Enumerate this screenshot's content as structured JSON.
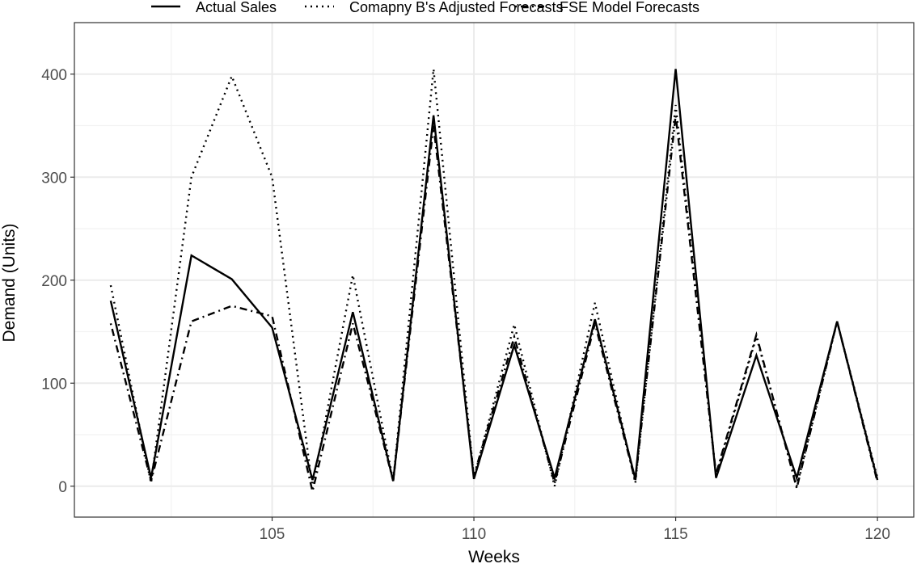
{
  "chart_data": {
    "type": "line",
    "title": "",
    "xlabel": "Weeks",
    "ylabel": "Demand (Units)",
    "xlim": [
      100.1,
      120.9
    ],
    "ylim": [
      -30,
      450
    ],
    "xticks": [
      105,
      110,
      115,
      120
    ],
    "yticks": [
      0,
      100,
      200,
      300,
      400
    ],
    "grid": true,
    "legend_position": "top",
    "x": [
      101,
      102,
      103,
      104,
      105,
      106,
      107,
      108,
      109,
      110,
      111,
      112,
      113,
      114,
      115,
      116,
      117,
      118,
      119,
      120
    ],
    "series": [
      {
        "name": "Actual Sales",
        "dash": "solid",
        "values": [
          180,
          8,
          224,
          201,
          154,
          6,
          169,
          5,
          360,
          7,
          137,
          8,
          162,
          7,
          405,
          8,
          127,
          8,
          160,
          6
        ]
      },
      {
        "name": "Comapny B's Adjusted Forecasts",
        "dash": "dotted",
        "values": [
          195,
          3,
          300,
          398,
          300,
          -2,
          205,
          5,
          405,
          8,
          157,
          0,
          178,
          3,
          370,
          10,
          145,
          0,
          160,
          8
        ]
      },
      {
        "name": "FSE Model Forecasts",
        "dash": "dashdot",
        "values": [
          158,
          5,
          160,
          175,
          165,
          -5,
          158,
          5,
          350,
          10,
          145,
          3,
          158,
          5,
          360,
          12,
          147,
          -2,
          160,
          4
        ]
      }
    ]
  }
}
